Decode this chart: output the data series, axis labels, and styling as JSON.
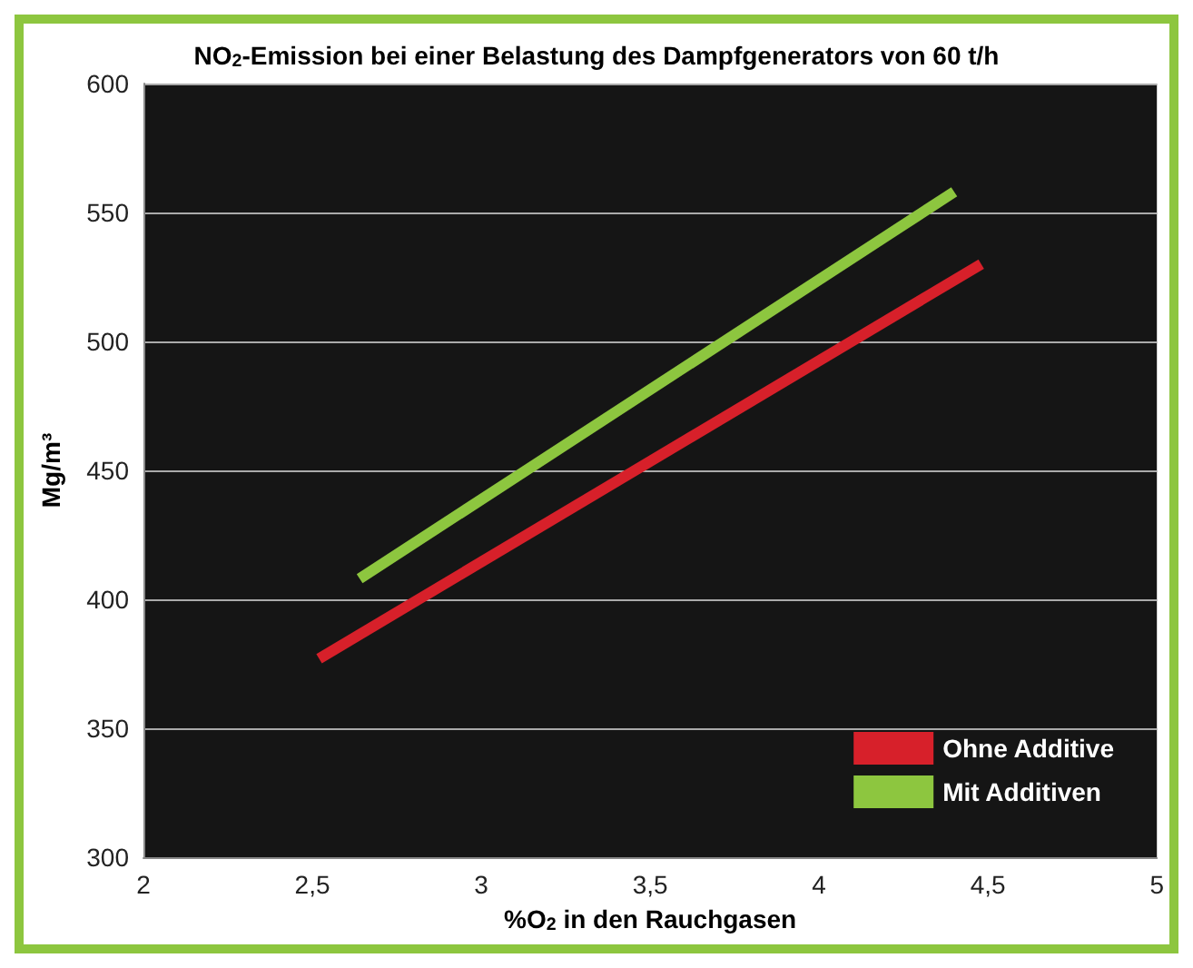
{
  "chart_data": {
    "type": "line",
    "title": "NO$_{2}$-Emission bei einer Belastung des Dampfgenerators von 60 t/h",
    "xlabel": "%O$_{2}$ in den Rauchgasen",
    "ylabel": "Mg/m³",
    "series": [
      {
        "name": "Ohne Additive",
        "color": "#d7202a",
        "x": [
          2.52,
          4.48
        ],
        "values": [
          377,
          530
        ]
      },
      {
        "name": "Mit Additiven",
        "color": "#8dc63f",
        "x": [
          2.64,
          4.4
        ],
        "values": [
          408,
          558
        ]
      }
    ],
    "xlim": [
      2,
      5
    ],
    "xticks": [
      2,
      {
        "value": 2.5,
        "label": "2,5"
      },
      3,
      {
        "value": 3.5,
        "label": "3,5"
      },
      4,
      {
        "value": 4.5,
        "label": "4,5"
      },
      5
    ],
    "ylim": [
      300,
      600
    ],
    "yticks": [
      300,
      350,
      400,
      450,
      500,
      550,
      600
    ],
    "grid": "y",
    "legend": "bottom right",
    "marker": "none",
    "line_style": "solid"
  }
}
